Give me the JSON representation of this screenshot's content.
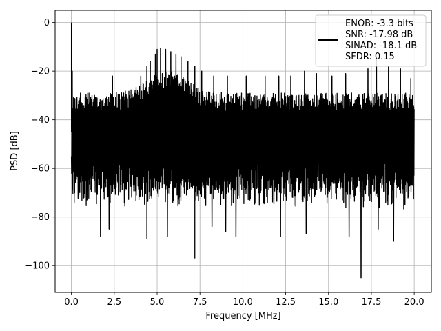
{
  "chart_data": {
    "type": "line",
    "title": "",
    "xlabel": "Frequency [MHz]",
    "ylabel": "PSD [dB]",
    "xlim": [
      -0.95,
      21.0
    ],
    "ylim": [
      -111,
      5
    ],
    "x_ticks": [
      0.0,
      2.5,
      5.0,
      7.5,
      10.0,
      12.5,
      15.0,
      17.5,
      20.0
    ],
    "x_tick_labels": [
      "0.0",
      "2.5",
      "5.0",
      "7.5",
      "10.0",
      "12.5",
      "15.0",
      "17.5",
      "20.0"
    ],
    "y_ticks": [
      0,
      -20,
      -40,
      -60,
      -80,
      -100
    ],
    "y_tick_labels": [
      "0",
      "−20",
      "−40",
      "−60",
      "−80",
      "−100"
    ],
    "grid": true,
    "legend_position": "top-right",
    "legend_entries": [
      "ENOB: -3.3 bits",
      "SNR: -17.98 dB",
      "SINAD: -18.1 dB",
      "SFDR: 0.15"
    ],
    "line_color": "#000000",
    "series": [
      {
        "x_range": [
          0.0,
          20.0
        ],
        "dense_noise_floor_band_dB": [
          -65,
          -29
        ],
        "peaks": [
          {
            "x": 0.0,
            "y": 0
          },
          {
            "x": 0.05,
            "y": -20
          },
          {
            "x": 2.4,
            "y": -22
          },
          {
            "x": 4.05,
            "y": -22
          },
          {
            "x": 4.4,
            "y": -18
          },
          {
            "x": 4.6,
            "y": -16
          },
          {
            "x": 4.9,
            "y": -13
          },
          {
            "x": 5.0,
            "y": -11
          },
          {
            "x": 5.2,
            "y": -10.5
          },
          {
            "x": 5.5,
            "y": -11
          },
          {
            "x": 5.8,
            "y": -12
          },
          {
            "x": 6.1,
            "y": -13
          },
          {
            "x": 6.4,
            "y": -14
          },
          {
            "x": 6.8,
            "y": -16
          },
          {
            "x": 7.2,
            "y": -18
          },
          {
            "x": 7.6,
            "y": -20
          },
          {
            "x": 8.3,
            "y": -22
          },
          {
            "x": 9.1,
            "y": -22
          },
          {
            "x": 10.2,
            "y": -22
          },
          {
            "x": 11.3,
            "y": -22
          },
          {
            "x": 12.1,
            "y": -22
          },
          {
            "x": 12.8,
            "y": -22
          },
          {
            "x": 13.6,
            "y": -20
          },
          {
            "x": 14.3,
            "y": -21
          },
          {
            "x": 15.2,
            "y": -22
          },
          {
            "x": 16.0,
            "y": -21
          },
          {
            "x": 17.3,
            "y": -19
          },
          {
            "x": 17.8,
            "y": -14
          },
          {
            "x": 18.5,
            "y": -18
          },
          {
            "x": 19.2,
            "y": -19
          },
          {
            "x": 19.8,
            "y": -23
          }
        ],
        "troughs": [
          {
            "x": 1.7,
            "y": -88
          },
          {
            "x": 2.2,
            "y": -85
          },
          {
            "x": 4.4,
            "y": -89
          },
          {
            "x": 5.6,
            "y": -88
          },
          {
            "x": 7.2,
            "y": -97
          },
          {
            "x": 8.2,
            "y": -84
          },
          {
            "x": 9.0,
            "y": -86
          },
          {
            "x": 9.6,
            "y": -88
          },
          {
            "x": 12.2,
            "y": -88
          },
          {
            "x": 13.7,
            "y": -87
          },
          {
            "x": 16.2,
            "y": -88
          },
          {
            "x": 16.9,
            "y": -105
          },
          {
            "x": 17.9,
            "y": -85
          },
          {
            "x": 18.8,
            "y": -90
          }
        ]
      }
    ]
  }
}
